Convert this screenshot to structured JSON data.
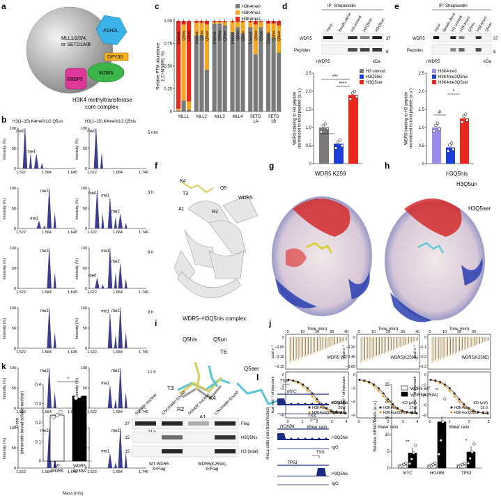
{
  "panels": [
    "a",
    "b",
    "c",
    "d",
    "e",
    "f",
    "g",
    "h",
    "i",
    "j",
    "k",
    "l"
  ],
  "a": {
    "writer_label": "MLL1/2/3/4,\nor SETD1A/B",
    "subunits": [
      "ASH2L",
      "DPY30",
      "WDR5",
      "RBBP5"
    ],
    "caption": [
      "H3K4 methyltransferase",
      "core complex"
    ],
    "colors": {
      "ASH2L": "#3bb2e8",
      "DPY30": "#f5b21c",
      "WDR5": "#3bb44a",
      "RBBP5": "#e0389a"
    }
  },
  "b": {
    "col_titles": [
      "H3(1–15) K4me0/1/2 Q5un",
      "H3(1–15) K4me0/1/2 Q5his"
    ],
    "times": [
      "5 min",
      "3 h",
      "6 h",
      "9 h",
      "12 h",
      "24 h"
    ],
    "ylabel": "Intensity (%)",
    "xlabel": "Mass (m/z)",
    "ticks_left": [
      "1,522",
      "1,584",
      "1,645"
    ],
    "ticks_right": [
      "1,622",
      "1,684",
      "1,746"
    ],
    "y_ticks": [
      "0",
      "50",
      "100"
    ],
    "peak_labels": [
      "me0",
      "me1",
      "me2"
    ]
  },
  "c": {
    "ylabel": "Relative PTM abundance\n(LC–MS/MS, %)",
    "y_ticks": [
      "0",
      "0.25",
      "0.50",
      "0.75",
      "1.00"
    ],
    "groups": [
      "MLL1",
      "MLL2",
      "MLL3",
      "MLL4",
      "SETD\n1A",
      "SETD\n1B"
    ],
    "bar_labels": [
      "Unmod.",
      "Q5his",
      "Q5ser"
    ],
    "legend": [
      "H3K4me0",
      "H3K4me1",
      "H3K4me2"
    ],
    "colors": [
      "#7a7a7a",
      "#f5a623",
      "#e8291c"
    ]
  },
  "chart_data": [
    {
      "type": "bar",
      "title": "",
      "stacked": true,
      "categories": [
        "MLL1 Unmod.",
        "MLL1 Q5his",
        "MLL1 Q5ser",
        "MLL2 Unmod.",
        "MLL2 Q5his",
        "MLL2 Q5ser",
        "MLL3 Unmod.",
        "MLL3 Q5his",
        "MLL3 Q5ser",
        "MLL4 Unmod.",
        "MLL4 Q5his",
        "MLL4 Q5ser",
        "SETD1A Unmod.",
        "SETD1A Q5his",
        "SETD1A Q5ser",
        "SETD1B Unmod.",
        "SETD1B Q5his",
        "SETD1B Q5ser"
      ],
      "series": [
        {
          "name": "H3K4me0",
          "values": [
            0.01,
            0.12,
            0.02,
            0.84,
            0.84,
            0.46,
            0.97,
            0.97,
            0.95,
            0.87,
            0.93,
            0.86,
            0.93,
            0.63,
            0.93,
            0.86,
            0.81,
            0.65
          ]
        },
        {
          "name": "H3K4me1",
          "values": [
            0.02,
            0.84,
            0.09,
            0.14,
            0.14,
            0.5,
            0.02,
            0.02,
            0.04,
            0.12,
            0.06,
            0.13,
            0.06,
            0.33,
            0.06,
            0.11,
            0.16,
            0.3
          ]
        },
        {
          "name": "H3K4me2",
          "values": [
            0.97,
            0.04,
            0.89,
            0.02,
            0.02,
            0.04,
            0.01,
            0.01,
            0.01,
            0.01,
            0.01,
            0.01,
            0.01,
            0.04,
            0.01,
            0.03,
            0.03,
            0.05
          ]
        }
      ],
      "ylabel": "Relative PTM abundance (LC–MS/MS, %)",
      "ylim": [
        0,
        1
      ]
    },
    {
      "type": "bar",
      "title": "",
      "categories": [
        "H3 unmod.",
        "H3Q5his",
        "H3Q5ser"
      ],
      "values": [
        1.0,
        0.55,
        1.9
      ],
      "ylabel": "WDR5 binding to H3 peptide normalized to total peptide (a.u.)",
      "ylim": [
        0,
        2.5
      ]
    },
    {
      "type": "bar",
      "title": "",
      "categories": [
        "H3K4me0",
        "H3K4me3Q5his",
        "H3K4me3Q5ser"
      ],
      "values": [
        1.0,
        0.45,
        1.25
      ],
      "ylabel": "WDR5 binding to H3 peptide normalized to total peptide (a.u.)",
      "ylim": [
        0,
        2.5
      ]
    },
    {
      "type": "bar",
      "title": "",
      "categories": [
        "WT WDR5",
        "WDR5 K259A"
      ],
      "values": [
        0.24,
        0.34
      ],
      "ylabel": "Ratio (chromatin bound:soluble nuclear)",
      "ylim": [
        0,
        0.4
      ]
    },
    {
      "type": "bar",
      "title": "",
      "categories": [
        "MYC",
        "HOXB6",
        "TP53"
      ],
      "series": [
        {
          "name": "WDR5 WT",
          "values": [
            1.0,
            1.0,
            1.0
          ]
        },
        {
          "name": "WDR5(K259A)",
          "values": [
            4.5,
            13.8,
            4.8
          ]
        }
      ],
      "ylabel": "Relative mRNA levels (a.u.)",
      "ylim": [
        0,
        25
      ]
    }
  ],
  "d": {
    "ip": "IP: Streptavidin",
    "lanes": [
      "Input",
      "Beads alone",
      "H3 unmod.",
      "H3Q5his",
      "H3Q5ser"
    ],
    "blots": [
      "WDR5",
      "Peptides"
    ],
    "kda_top": "37",
    "kda_bottom": "8",
    "kda": "kDa",
    "rwdr5": "rWDR5",
    "legend": [
      "H3 unmod.",
      "H3Q5his",
      "H3Q5ser"
    ],
    "ylabel": "WDR5 binding to H3 peptide\nnormalized to total peptide (a.u.)",
    "y_ticks": [
      "0",
      "0.5",
      "1.0",
      "1.5",
      "2.0",
      "2.5"
    ],
    "sig": [
      "*",
      "***",
      "****"
    ],
    "colors": [
      "#7a7a7a",
      "#1a3fd6",
      "#e8291c"
    ]
  },
  "e": {
    "ip": "IP: Streptavidin",
    "lanes": [
      "Input",
      "Beads alone",
      "H3 unmod.",
      "H3K4me3",
      "Q5his",
      "H3K4me3",
      "Q5ser"
    ],
    "blots": [
      "WDR5",
      "Peptides"
    ],
    "kda_top": "37",
    "kda_bottom": "8",
    "kda": "kDa",
    "rwdr5": "rWDR5",
    "legend": [
      "H3K4me0",
      "H3K4me3Q5his",
      "H3K4me3Q5ser"
    ],
    "ylabel": "WDR5 binding to H3 peptide\nnormalized to total peptide (a.u.)",
    "y_ticks": [
      "0",
      "0.5",
      "1.0",
      "1.5",
      "2.0",
      "2.5"
    ],
    "sig": [
      "#",
      "*"
    ],
    "colors": [
      "#9a8be8",
      "#1a3fd6",
      "#e8291c"
    ]
  },
  "f": {
    "residues": [
      "K4",
      "Q5",
      "T3",
      "A1",
      "R2"
    ],
    "protein": "WDR5",
    "caption": "WDR5–H3Q5his complex"
  },
  "g": {
    "label": "WDR5 K259"
  },
  "h": {
    "labels": [
      "H3Q5his",
      "H3Q5un",
      "H3Q5ser"
    ]
  },
  "i": {
    "labels": [
      "Q5his",
      "Q5un",
      "T6",
      "Q5ser",
      "T3",
      "K4",
      "R2",
      "A1"
    ]
  },
  "j": {
    "time_label": "Time (min)",
    "time_ticks": [
      "0",
      "10",
      "20",
      "30",
      "40"
    ],
    "power_label": "μcal s⁻¹",
    "heat_label": "kcal mol⁻¹ of injectant",
    "x_label": "Molar ratio",
    "panels": [
      {
        "name": "WDR5 WT",
        "kd": [
          [
            "H3K4un",
            "20.2"
          ],
          [
            "H3K4unQ5his",
            "108.8"
          ]
        ],
        "xticks": [
          "0",
          "1",
          "2",
          "3",
          "4"
        ],
        "pticks": [
          "0",
          "−0.05",
          "−0.10",
          "−0.15"
        ],
        "hticks": [
          "0",
          "−2",
          "−4",
          "−6"
        ]
      },
      {
        "name": "WDR5(K259A)",
        "kd": [
          [
            "H3K4un",
            "17.8"
          ],
          [
            "H3K4unQ5his",
            "16.1"
          ]
        ],
        "xticks": [
          "0",
          "1",
          "2",
          "3",
          "4"
        ],
        "pticks": [
          "0",
          "−0.20",
          "−0.40",
          "−0.60"
        ],
        "hticks": [
          "0",
          "−2",
          "−4",
          "−6"
        ]
      },
      {
        "name": "WDR5(K259E)",
        "kd": [
          [
            "H3K4un",
            "19.0"
          ],
          [
            "H3K4unQ5his",
            "7.3"
          ]
        ],
        "xticks": [
          "0",
          "1",
          "2",
          "3"
        ],
        "pticks": [
          "0",
          "−0.1",
          "−0.2",
          "−0.3"
        ],
        "hticks": [
          "0",
          "−2",
          "−4",
          "−6",
          "−8"
        ]
      }
    ],
    "kd_header": "KD (μM)"
  },
  "k": {
    "ylabel": "Ratio\n(chromatin bound:soluble nuclear)",
    "y_ticks": [
      "0",
      "0.1",
      "0.2",
      "0.3",
      "0.4"
    ],
    "sig": "*",
    "lanes": [
      "Soluble nuclear",
      "Chromatin bound",
      "Soluble nuclear",
      "Chromatin bound"
    ],
    "blots": [
      "Flag",
      "H3Q5his",
      "H3 (total)"
    ],
    "kda": [
      "37",
      "15",
      "15"
    ],
    "groups": [
      "WT WDR5\n3×Flag",
      "WDR5(K259A)\n3×Flag"
    ]
  },
  "l": {
    "tss": "TSS",
    "genes": [
      "MYC",
      "HOXB6",
      "TP53"
    ],
    "tracks": [
      "H3Q5his",
      "IgG"
    ],
    "side_label": "HeLa cells (non-transfected)",
    "legend": [
      "WDR5 WT",
      "WDR5(K259A)"
    ],
    "ylabel": "Relative mRNA levels (a.u.)",
    "y_ticks": [
      "0",
      "5",
      "10",
      "15",
      "20",
      "25"
    ],
    "sig": [
      "**",
      "**",
      "*"
    ]
  }
}
